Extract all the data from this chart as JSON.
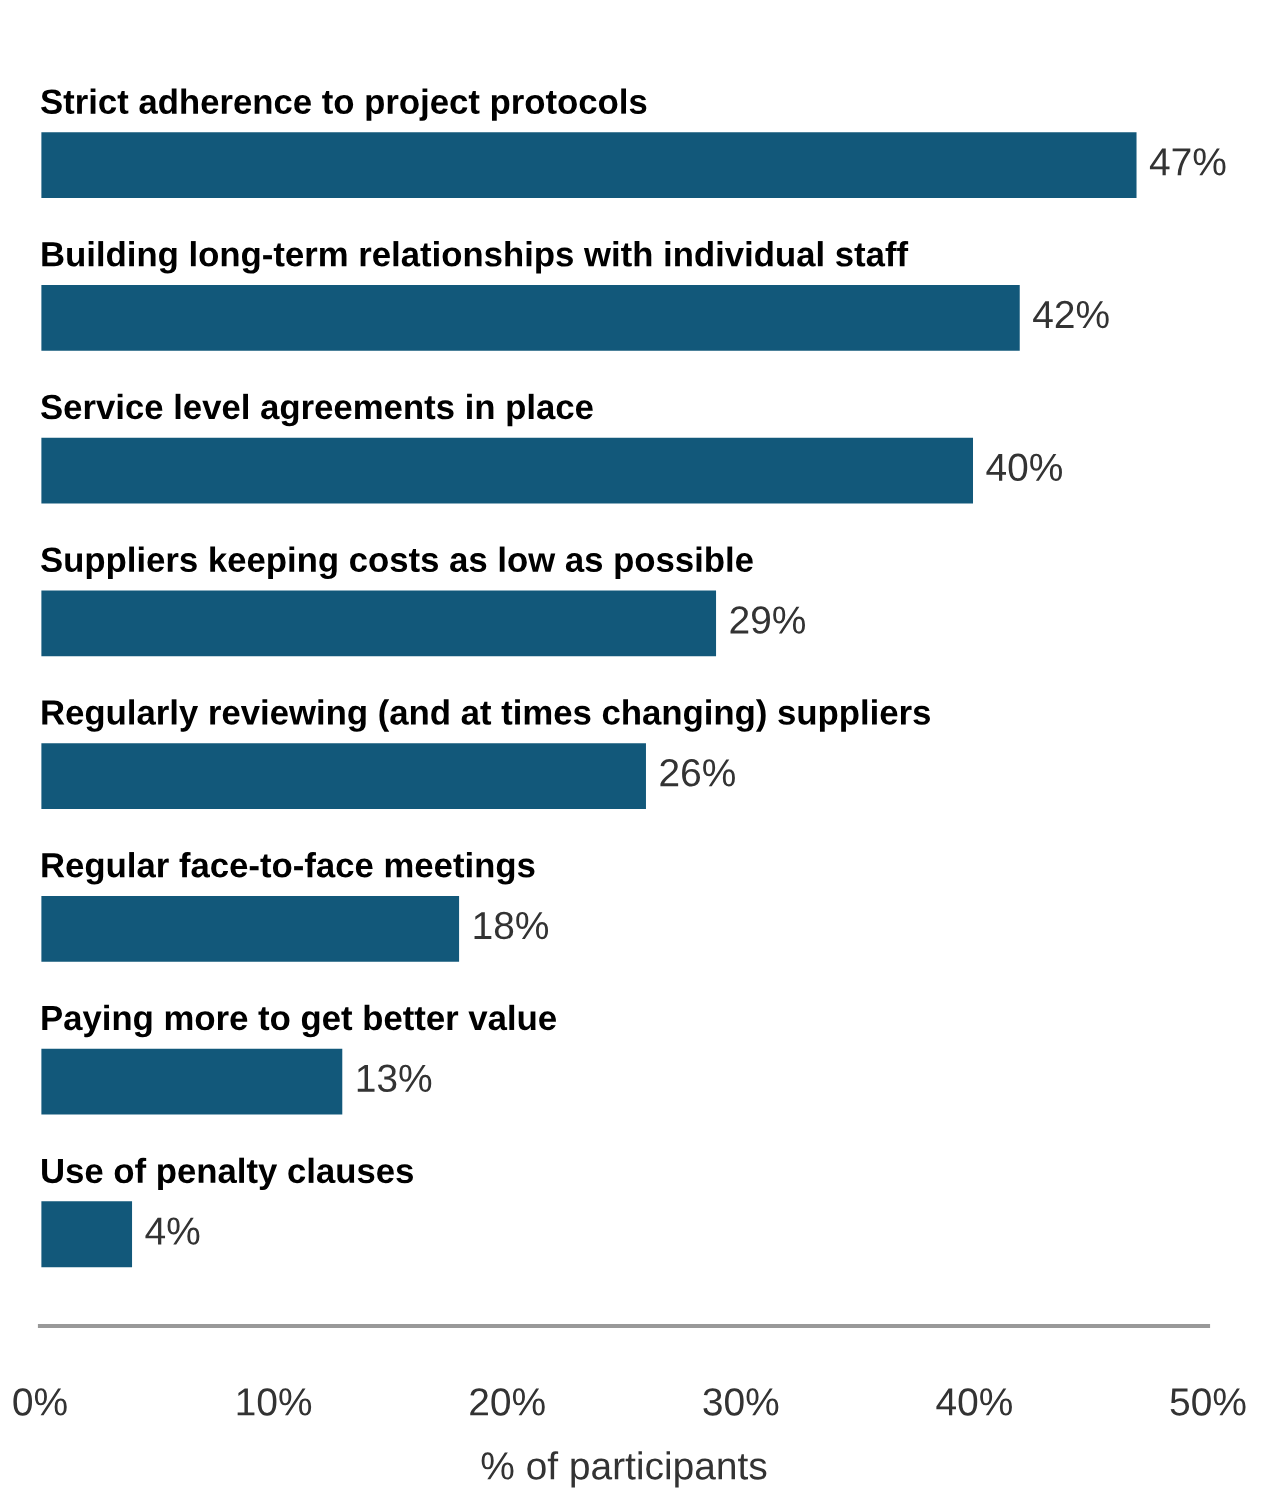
{
  "chart_data": {
    "type": "bar",
    "orientation": "horizontal",
    "xlabel": "% of participants",
    "categories": [
      "Strict adherence to project protocols",
      "Building long-term relationships with individual staff",
      "Service level agreements in place",
      "Suppliers keeping costs as low as possible",
      "Regularly reviewing (and at times changing) suppliers",
      "Regular face-to-face meetings",
      "Paying more to get better value",
      "Use of penalty clauses"
    ],
    "values": [
      47,
      42,
      40,
      29,
      26,
      18,
      13,
      4
    ],
    "value_labels": [
      "47%",
      "42%",
      "40%",
      "29%",
      "26%",
      "18%",
      "13%",
      "4%"
    ],
    "color": "#12587a",
    "xlim": [
      0,
      50
    ],
    "xticks": [
      {
        "value": 0,
        "label": "0%"
      },
      {
        "value": 10,
        "label": "10%"
      },
      {
        "value": 20,
        "label": "20%"
      },
      {
        "value": 30,
        "label": "30%"
      },
      {
        "value": 40,
        "label": "40%"
      },
      {
        "value": 50,
        "label": "50%"
      }
    ],
    "grid": false
  }
}
